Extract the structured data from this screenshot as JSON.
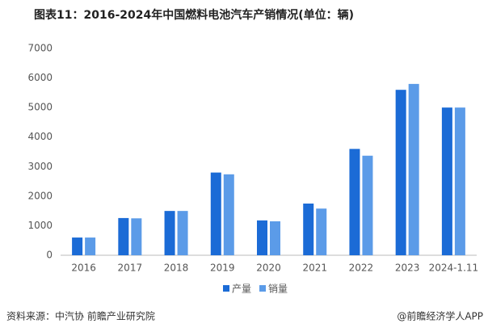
{
  "chart_data": {
    "type": "bar",
    "title": "图表11：2016-2024年中国燃料电池汽车产销情况(单位：辆)",
    "categories": [
      "2016",
      "2017",
      "2018",
      "2019",
      "2020",
      "2021",
      "2022",
      "2023",
      "2024-1.11"
    ],
    "series": [
      {
        "name": "产量",
        "color": "#1b6bd6",
        "values": [
          600,
          1260,
          1500,
          2800,
          1180,
          1750,
          3600,
          5600,
          5000
        ]
      },
      {
        "name": "销量",
        "color": "#5b9be8",
        "values": [
          600,
          1250,
          1500,
          2740,
          1150,
          1580,
          3370,
          5800,
          5000
        ]
      }
    ],
    "ylim": [
      0,
      7000
    ],
    "yticks": [
      0,
      1000,
      2000,
      3000,
      4000,
      5000,
      6000,
      7000
    ],
    "grid": false,
    "legend": "bottom"
  },
  "footer": {
    "source": "资料来源：中汽协 前瞻产业研究院",
    "brand": "@前瞻经济学人APP"
  }
}
